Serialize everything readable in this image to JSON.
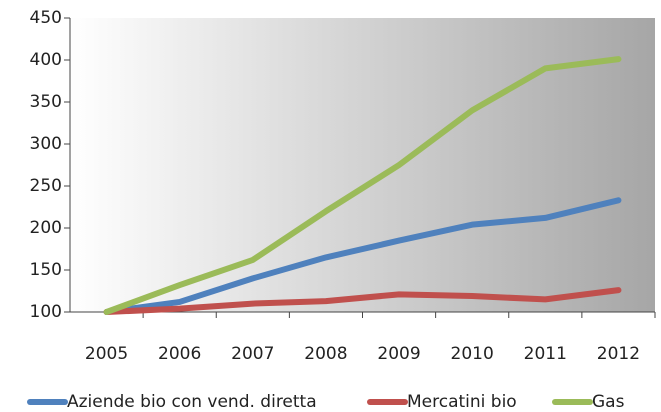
{
  "chart_data": {
    "type": "line",
    "categories": [
      "2005",
      "2006",
      "2007",
      "2008",
      "2009",
      "2010",
      "2011",
      "2012"
    ],
    "series": [
      {
        "name": "Aziende bio con vend. diretta",
        "color": "#4f81bd",
        "values": [
          100,
          112,
          140,
          165,
          185,
          204,
          212,
          233
        ]
      },
      {
        "name": "Mercatini bio",
        "color": "#c0504d",
        "values": [
          100,
          104,
          110,
          113,
          121,
          119,
          115,
          126
        ]
      },
      {
        "name": "Gas",
        "color": "#9bbb59",
        "values": [
          100,
          132,
          162,
          220,
          275,
          340,
          390,
          401
        ]
      }
    ],
    "ylim": [
      100,
      450
    ],
    "yticks": [
      100,
      150,
      200,
      250,
      300,
      350,
      400,
      450
    ],
    "legend": "bottom"
  }
}
